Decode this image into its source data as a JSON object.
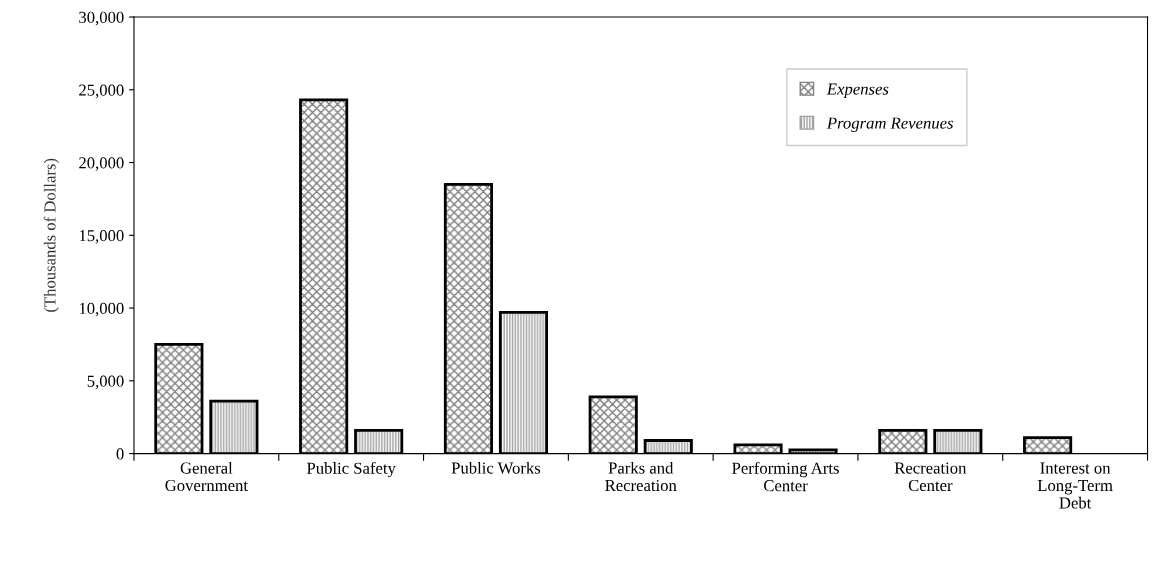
{
  "chart_data": {
    "type": "bar",
    "ylabel": "(Thousands of Dollars)",
    "categories": [
      "General\nGovernment",
      "Public Safety",
      "Public Works",
      "Parks and\nRecreation",
      "Performing Arts\nCenter",
      "Recreation\nCenter",
      "Interest on\nLong-Term\nDebt"
    ],
    "series": [
      {
        "name": "Expenses",
        "color": "#808080",
        "values": [
          7500,
          24300,
          18500,
          3900,
          600,
          1600,
          1100
        ]
      },
      {
        "name": "Program Revenues",
        "color": "#a0a0a0",
        "values": [
          3600,
          1600,
          9700,
          900,
          250,
          1600,
          null
        ]
      }
    ],
    "ylim": [
      0,
      30000
    ],
    "yticks": [
      {
        "value": 0,
        "label": "0"
      },
      {
        "value": 5000,
        "label": "5,000"
      },
      {
        "value": 10000,
        "label": "10,000"
      },
      {
        "value": 15000,
        "label": "15,000"
      },
      {
        "value": 20000,
        "label": "20,000"
      },
      {
        "value": 25000,
        "label": "25,000"
      },
      {
        "value": 30000,
        "label": "30,000"
      }
    ],
    "legend": "top right"
  }
}
